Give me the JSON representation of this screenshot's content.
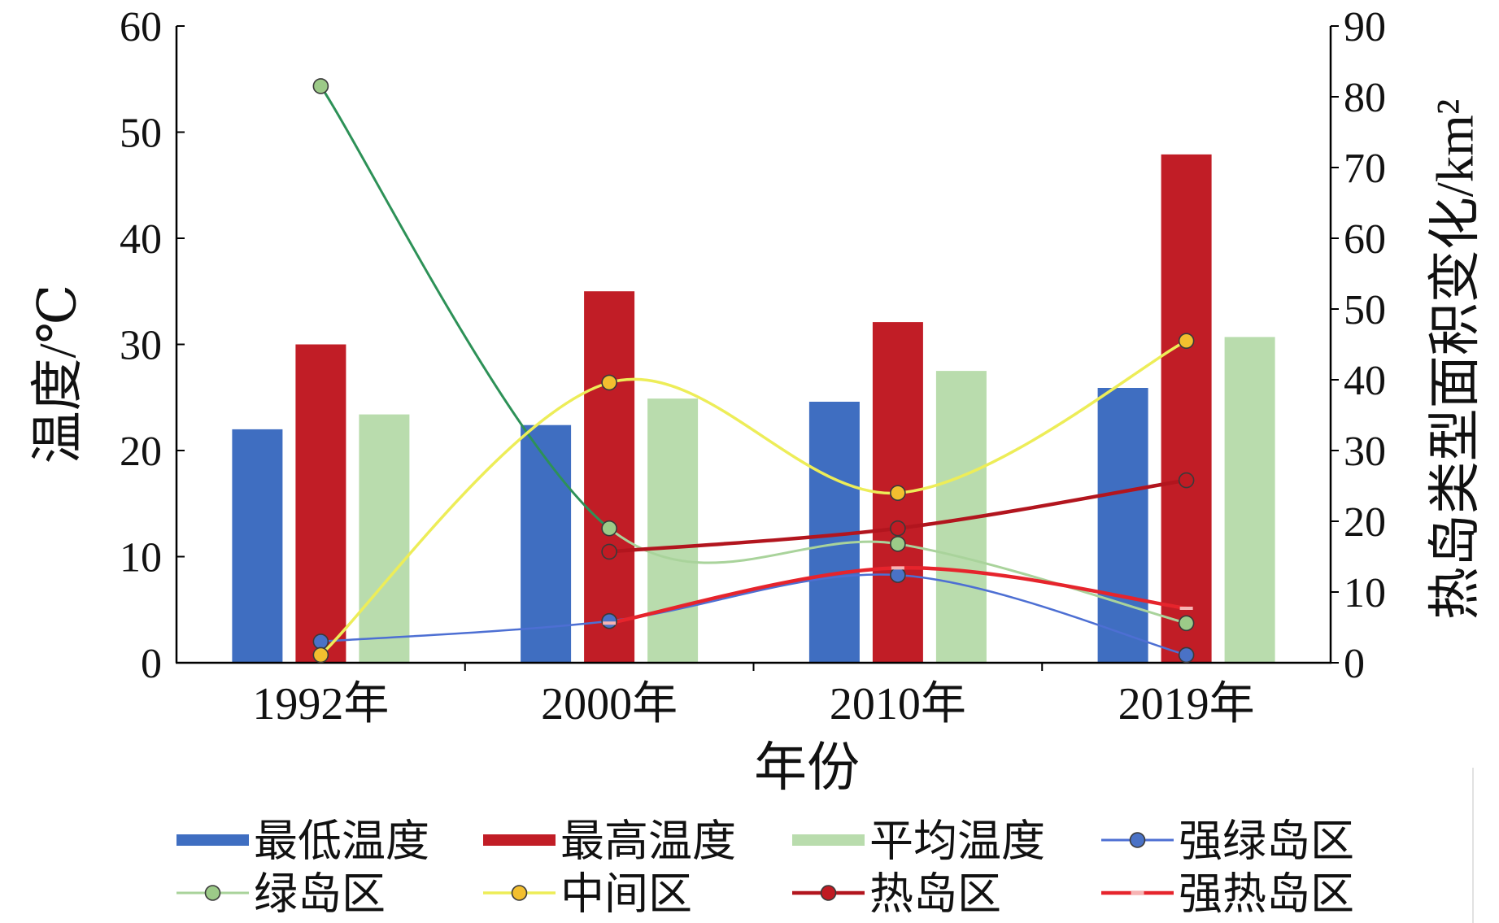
{
  "chart_data": {
    "type": "bar",
    "categories": [
      "1992年",
      "2000年",
      "2010年",
      "2019年"
    ],
    "xlabel": "年份",
    "ylabel": "温度/℃",
    "ylabel_right": "热岛类型面积变化/km²",
    "ylim": [
      0,
      60
    ],
    "ylim_right": [
      0,
      90
    ],
    "yticks": [
      0,
      10,
      20,
      30,
      40,
      50,
      60
    ],
    "yticks_right": [
      0,
      10,
      20,
      30,
      40,
      50,
      60,
      70,
      80,
      90
    ],
    "grid": false,
    "legend_position": "bottom",
    "series": [
      {
        "name": "最低温度",
        "type": "bar",
        "axis": "left",
        "color": "#3f6ec1",
        "values": [
          22.0,
          22.4,
          24.6,
          25.9
        ]
      },
      {
        "name": "最高温度",
        "type": "bar",
        "axis": "left",
        "color": "#c11d26",
        "values": [
          30.0,
          35.0,
          32.1,
          47.9
        ]
      },
      {
        "name": "平均温度",
        "type": "bar",
        "axis": "left",
        "color": "#b9dcad",
        "values": [
          23.4,
          24.9,
          27.5,
          30.7
        ]
      },
      {
        "name": "强绿岛区",
        "type": "line",
        "axis": "right",
        "smooth": true,
        "marker": "circle",
        "color": "#4d6fd3",
        "marker_color": "#4a72c6",
        "values": [
          3.0,
          5.9,
          12.4,
          1.1
        ]
      },
      {
        "name": "绿岛区",
        "type": "line",
        "axis": "right",
        "smooth": true,
        "marker": "circle",
        "color": "#a9d39b",
        "lead_segment_color": "#2d9157",
        "marker_color": "#9cca88",
        "values": [
          81.5,
          19.0,
          16.8,
          5.6
        ]
      },
      {
        "name": "中间区",
        "type": "line",
        "axis": "right",
        "smooth": true,
        "marker": "circle",
        "color": "#eded58",
        "marker_color": "#f3bf2f",
        "values": [
          1.1,
          39.6,
          24.0,
          45.5
        ]
      },
      {
        "name": "热岛区",
        "type": "line",
        "axis": "right",
        "smooth": true,
        "marker": "circle",
        "color": "#b2151e",
        "marker_color": "#c01b23",
        "values": [
          null,
          15.7,
          19.0,
          25.8
        ]
      },
      {
        "name": "强热岛区",
        "type": "line",
        "axis": "right",
        "smooth": true,
        "marker": "dash",
        "color": "#e6242c",
        "marker_color": "#f7b3b3",
        "values": [
          null,
          5.6,
          13.4,
          7.7
        ]
      }
    ]
  }
}
